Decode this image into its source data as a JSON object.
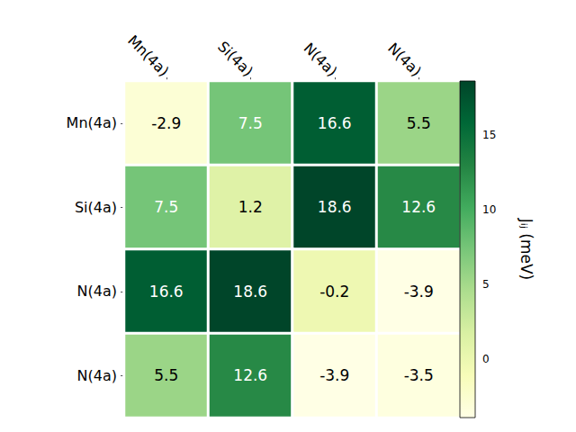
{
  "chart_data": {
    "type": "heatmap",
    "x_categories": [
      "Mn(4a)",
      "Si(4a)",
      "N(4a)",
      "N(4a)"
    ],
    "y_categories": [
      "Mn(4a)",
      "Si(4a)",
      "N(4a)",
      "N(4a)"
    ],
    "values": [
      [
        -2.9,
        7.5,
        16.6,
        5.5
      ],
      [
        7.5,
        1.2,
        18.6,
        12.6
      ],
      [
        16.6,
        18.6,
        -0.2,
        -3.9
      ],
      [
        5.5,
        12.6,
        -3.9,
        -3.5
      ]
    ],
    "data_labels": true,
    "colorbar": {
      "label": "Jᵢⱼ (meV)",
      "range": [
        -3.9,
        18.6
      ],
      "ticks": [
        0,
        5,
        10,
        15
      ]
    }
  }
}
